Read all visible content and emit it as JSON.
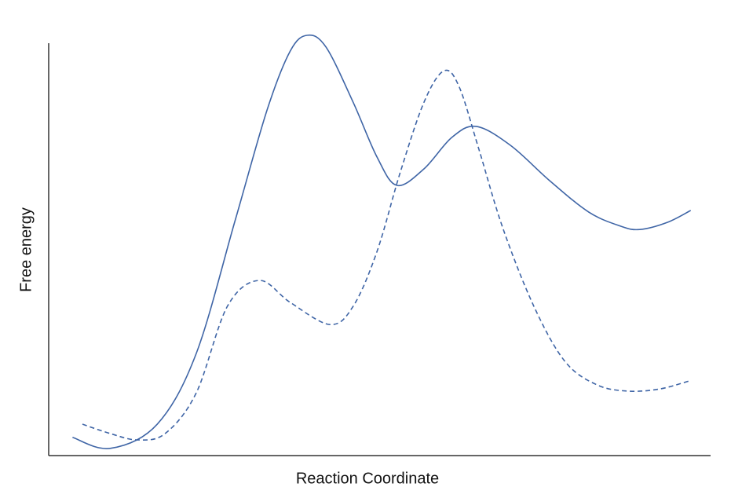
{
  "chart_data": {
    "type": "line",
    "x_label": "Reaction Coordinate",
    "y_label": "Free energy",
    "xlim": [
      0,
      100
    ],
    "ylim": [
      0,
      100
    ],
    "smooth": true,
    "series": [
      {
        "color": "#3f65a6",
        "line_style": "solid",
        "x": [
          3.6,
          9.3,
          16.4,
          22.3,
          28.2,
          33.0,
          36.5,
          39.1,
          41.9,
          46.0,
          49.6,
          52.6,
          56.7,
          60.9,
          64.6,
          69.8,
          75.7,
          81.6,
          86.4,
          89.3,
          93.5,
          97.0
        ],
        "values": [
          4.3,
          1.7,
          7.4,
          24.1,
          55.6,
          81.5,
          95.4,
          99.1,
          96.3,
          83.3,
          70.4,
          63.7,
          67.6,
          75.0,
          77.6,
          73.1,
          64.8,
          57.4,
          54.1,
          53.3,
          55.0,
          57.8
        ]
      },
      {
        "color": "#3f65a6",
        "line_style": "dashed",
        "x": [
          5.1,
          9.3,
          13.4,
          17.6,
          22.3,
          27.0,
          31.8,
          36.5,
          42.5,
          46.0,
          49.6,
          53.1,
          56.7,
          59.7,
          62.0,
          65.0,
          68.6,
          73.3,
          78.0,
          82.8,
          87.5,
          92.3,
          96.8
        ],
        "values": [
          7.4,
          5.2,
          3.7,
          5.2,
          14.8,
          35.2,
          41.3,
          36.1,
          30.9,
          35.2,
          48.1,
          66.7,
          83.3,
          90.7,
          87.0,
          72.2,
          53.7,
          35.2,
          22.2,
          16.7,
          15.2,
          15.7,
          17.6
        ]
      }
    ]
  }
}
